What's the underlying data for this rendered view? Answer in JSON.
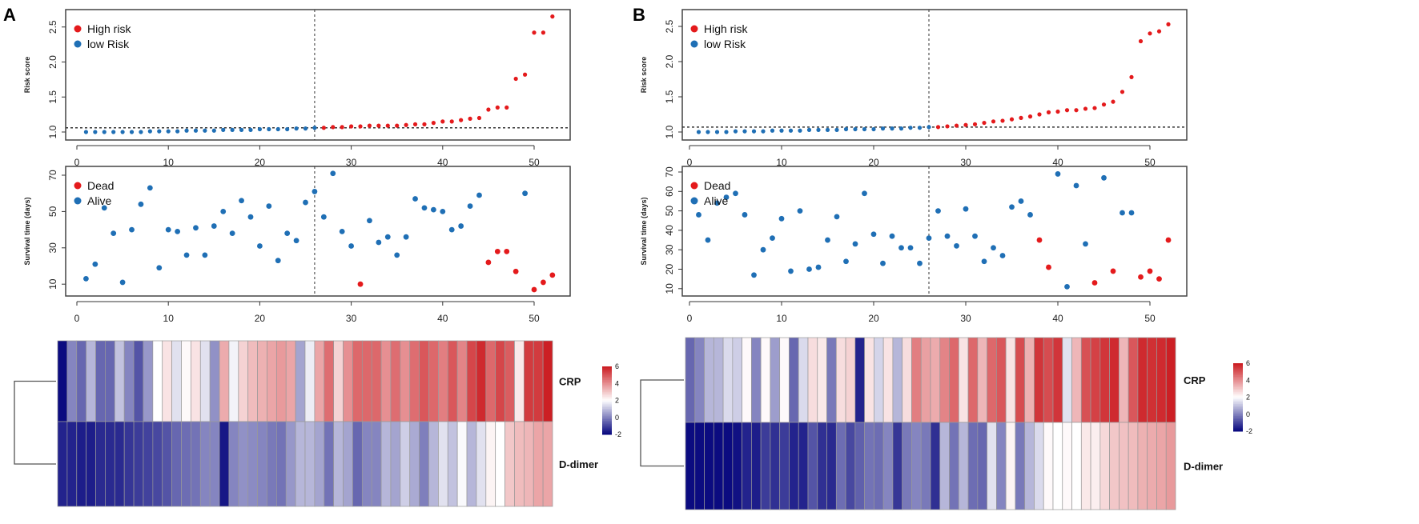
{
  "chart_data": [
    {
      "panel": "A",
      "type": "scatter",
      "ylabel": "Risk score",
      "ylim": [
        1.0,
        2.6
      ],
      "yticks": [
        "1.0",
        "1.5",
        "2.0",
        "2.5"
      ],
      "xticks": [
        "0",
        "10",
        "20",
        "30",
        "40",
        "50"
      ],
      "xlim": [
        0,
        52
      ],
      "cutoff_x": 26,
      "cutoff_y": 1.06,
      "legend": [
        {
          "label": "High risk",
          "color": "#e41a1c"
        },
        {
          "label": "low Risk",
          "color": "#1f6fb5"
        }
      ],
      "low_risk": [
        1.0,
        1.0,
        1.0,
        1.0,
        1.0,
        1.0,
        1.0,
        1.01,
        1.01,
        1.01,
        1.01,
        1.02,
        1.02,
        1.02,
        1.02,
        1.03,
        1.03,
        1.03,
        1.03,
        1.04,
        1.04,
        1.04,
        1.04,
        1.05,
        1.05,
        1.06
      ],
      "high_risk": [
        1.06,
        1.07,
        1.07,
        1.08,
        1.08,
        1.09,
        1.09,
        1.09,
        1.09,
        1.1,
        1.11,
        1.11,
        1.13,
        1.15,
        1.15,
        1.17,
        1.19,
        1.2,
        1.32,
        1.35,
        1.35,
        1.76,
        1.82,
        2.42,
        2.42,
        2.65
      ]
    },
    {
      "panel": "A",
      "type": "scatter",
      "ylabel": "Survival time (days)",
      "ylim": [
        7,
        72
      ],
      "yticks": [
        "10",
        "30",
        "50",
        "70"
      ],
      "xticks": [
        "0",
        "10",
        "20",
        "30",
        "40",
        "50"
      ],
      "cutoff_x": 26,
      "legend": [
        {
          "label": "Dead",
          "color": "#e41a1c"
        },
        {
          "label": "Alive",
          "color": "#1f6fb5"
        }
      ],
      "survival": [
        13,
        21,
        52,
        38,
        11,
        40,
        54,
        63,
        19,
        40,
        39,
        26,
        41,
        26,
        42,
        50,
        38,
        56,
        47,
        31,
        53,
        23,
        38,
        34,
        55,
        61,
        47,
        71,
        39,
        31,
        10,
        45,
        33,
        36,
        26,
        36,
        57,
        52,
        51,
        50,
        40,
        42,
        53,
        59,
        22,
        28,
        28,
        17,
        60,
        7,
        11,
        15
      ],
      "dead_index": [
        31,
        45,
        46,
        47,
        48,
        50,
        51,
        52
      ]
    },
    {
      "panel": "A",
      "type": "heatmap",
      "rows": [
        "CRP",
        "D-dimer"
      ],
      "colorbar_ticks": [
        "6",
        "4",
        "2",
        "0",
        "-2"
      ],
      "range": [
        -2,
        6
      ],
      "values": [
        [
          -2,
          0,
          -0.5,
          0.8,
          -0.5,
          -0.5,
          1,
          0,
          -0.8,
          0.3,
          2,
          2.5,
          1.5,
          2.1,
          2.5,
          1.5,
          0.2,
          3.5,
          1.8,
          2.8,
          3.2,
          3.4,
          3.6,
          3.8,
          3.6,
          0.5,
          1.7,
          3.6,
          4.6,
          2.8,
          4.0,
          4.7,
          4.7,
          4.7,
          4.0,
          4.6,
          4.0,
          4.6,
          5.0,
          4.7,
          4.3,
          5.0,
          4.2,
          5.3,
          5.8,
          4.7,
          5.3,
          4.9,
          2.4,
          5.5,
          5.5,
          6
        ],
        [
          -1.6,
          -1.6,
          -1.7,
          -1.7,
          -1.5,
          -1.5,
          -1.5,
          -1.3,
          -1.2,
          -1.1,
          -1.0,
          -0.8,
          -0.5,
          -0.4,
          -0.3,
          0,
          0,
          -1.8,
          0,
          0.2,
          0.1,
          0,
          -0.2,
          -0.3,
          0.3,
          0.8,
          0.8,
          0.5,
          -0.3,
          0.8,
          0.5,
          -0.5,
          0,
          0,
          0.8,
          0.5,
          1.2,
          0.6,
          -0.1,
          0.8,
          1.5,
          1.0,
          1.9,
          0.8,
          1.5,
          2.2,
          2.0,
          3.0,
          3.2,
          3.3,
          3.6,
          3.6
        ]
      ]
    },
    {
      "panel": "B",
      "type": "scatter",
      "ylabel": "Risk score",
      "ylim": [
        1.0,
        2.55
      ],
      "yticks": [
        "1.0",
        "1.5",
        "2.0",
        "2.5"
      ],
      "xticks": [
        "0",
        "10",
        "20",
        "30",
        "40",
        "50"
      ],
      "cutoff_x": 26,
      "cutoff_y": 1.07,
      "legend": [
        {
          "label": "High risk",
          "color": "#e41a1c"
        },
        {
          "label": "low Risk",
          "color": "#1f6fb5"
        }
      ],
      "low_risk": [
        1.0,
        1.0,
        1.0,
        1.0,
        1.01,
        1.01,
        1.01,
        1.01,
        1.02,
        1.02,
        1.02,
        1.02,
        1.03,
        1.03,
        1.03,
        1.03,
        1.04,
        1.04,
        1.04,
        1.04,
        1.05,
        1.05,
        1.05,
        1.06,
        1.06,
        1.07
      ],
      "high_risk": [
        1.07,
        1.08,
        1.09,
        1.1,
        1.11,
        1.13,
        1.15,
        1.16,
        1.18,
        1.2,
        1.22,
        1.25,
        1.28,
        1.29,
        1.31,
        1.31,
        1.33,
        1.34,
        1.39,
        1.43,
        1.57,
        1.78,
        2.29,
        2.4,
        2.43,
        2.53
      ]
    },
    {
      "panel": "B",
      "type": "scatter",
      "ylabel": "Survival time (days)",
      "ylim": [
        10,
        70
      ],
      "yticks": [
        "10",
        "20",
        "30",
        "40",
        "50",
        "60",
        "70"
      ],
      "xticks": [
        "0",
        "10",
        "20",
        "30",
        "40",
        "50"
      ],
      "cutoff_x": 26,
      "legend": [
        {
          "label": "Dead",
          "color": "#e41a1c"
        },
        {
          "label": "Alive",
          "color": "#1f6fb5"
        }
      ],
      "survival": [
        48,
        35,
        54,
        57,
        59,
        48,
        17,
        30,
        36,
        46,
        19,
        50,
        20,
        21,
        35,
        47,
        24,
        33,
        59,
        38,
        23,
        37,
        31,
        31,
        23,
        36,
        50,
        37,
        32,
        51,
        37,
        24,
        31,
        27,
        52,
        55,
        48,
        35,
        21,
        69,
        11,
        63,
        33,
        13,
        67,
        19,
        49,
        49,
        16,
        19,
        15,
        35
      ],
      "dead_index": [
        38,
        39,
        44,
        46,
        49,
        50,
        51,
        52
      ]
    },
    {
      "panel": "B",
      "type": "heatmap",
      "rows": [
        "CRP",
        "D-dimer"
      ],
      "colorbar_ticks": [
        "6",
        "4",
        "2",
        "0",
        "-2"
      ],
      "range": [
        -2,
        6
      ],
      "values": [
        [
          -0.5,
          0,
          0.8,
          0.8,
          1.4,
          1.2,
          2.1,
          0,
          2.1,
          0.4,
          2.1,
          -0.5,
          1.4,
          2.6,
          2.4,
          -0.2,
          2.6,
          2.8,
          -1.6,
          2.5,
          1.3,
          2.5,
          0.8,
          2.6,
          4.3,
          3.7,
          3.5,
          4.2,
          4.7,
          2.5,
          4.7,
          3.3,
          4.7,
          5.0,
          2.5,
          5.2,
          3.4,
          5.6,
          5.2,
          5.6,
          1.5,
          3.3,
          5.1,
          5.4,
          5.6,
          5.8,
          3.3,
          5.0,
          5.8,
          5.7,
          5.8,
          6.0
        ],
        [
          -2,
          -2,
          -2,
          -2,
          -2,
          -1.9,
          -1.6,
          -1.7,
          -1.2,
          -1.4,
          -1.2,
          -1.6,
          -1.6,
          -0.8,
          -1.4,
          -1.5,
          -0.4,
          -1.0,
          -0.6,
          -0.3,
          -0.4,
          0,
          -1.3,
          -0.2,
          0,
          -0.2,
          -1.4,
          0.8,
          -0.3,
          0.8,
          -0.4,
          -0.5,
          1.5,
          0,
          2.2,
          -0.2,
          0.8,
          1.4,
          2.1,
          2.0,
          2.1,
          2.0,
          2.4,
          2.3,
          2.7,
          3.0,
          3.1,
          3.2,
          3.4,
          3.5,
          3.6,
          3.8
        ]
      ]
    }
  ],
  "colors": {
    "high": "#e41a1c",
    "low": "#1f6fb5",
    "heat_low": "#0b0b80",
    "heat_mid": "#ffffff",
    "heat_high": "#cc1f24"
  }
}
